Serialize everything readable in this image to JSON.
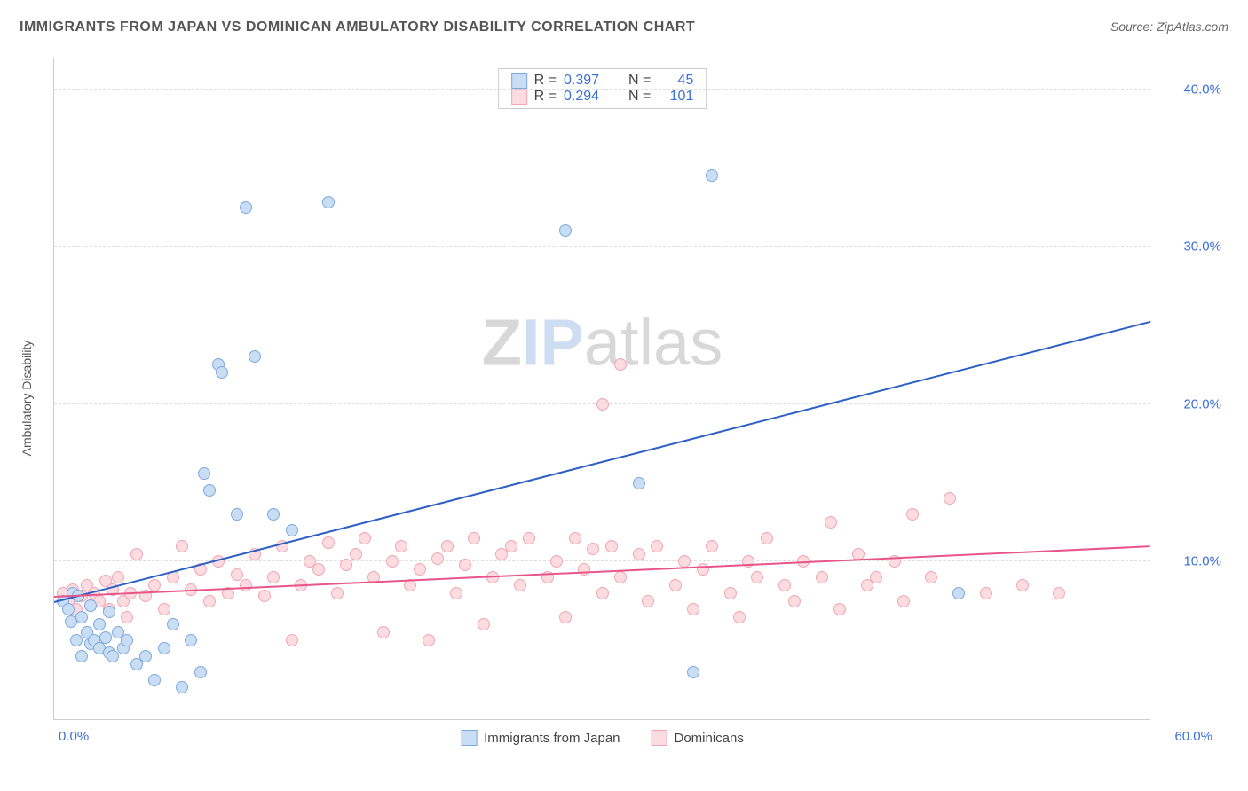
{
  "title": "IMMIGRANTS FROM JAPAN VS DOMINICAN AMBULATORY DISABILITY CORRELATION CHART",
  "source": "Source: ZipAtlas.com",
  "y_axis_label": "Ambulatory Disability",
  "watermark_parts": {
    "z": "Z",
    "ip": "IP",
    "atlas": "atlas"
  },
  "chart": {
    "type": "scatter",
    "xlim": [
      0,
      60
    ],
    "ylim": [
      0,
      42
    ],
    "x_ticks": [
      {
        "value": 0,
        "label": "0.0%"
      },
      {
        "value": 60,
        "label": "60.0%"
      }
    ],
    "y_ticks": [
      {
        "value": 10,
        "label": "10.0%"
      },
      {
        "value": 20,
        "label": "20.0%"
      },
      {
        "value": 30,
        "label": "30.0%"
      },
      {
        "value": 40,
        "label": "40.0%"
      }
    ],
    "background_color": "#ffffff",
    "grid_color": "#dddddd",
    "axis_color": "#cccccc",
    "tick_label_color": "#3a6fd8",
    "marker_radius": 7,
    "series": [
      {
        "name": "Immigrants from Japan",
        "key": "japan",
        "fill": "#c9ddf5",
        "stroke": "#7ea9dd",
        "line_color": "#2d5fc4",
        "R": "0.397",
        "N": "45",
        "regression": {
          "x1": 0,
          "y1": 7.5,
          "x2": 60,
          "y2": 25.3
        },
        "points": [
          [
            0.5,
            7.5
          ],
          [
            0.8,
            7.0
          ],
          [
            0.9,
            6.2
          ],
          [
            1.0,
            8.0
          ],
          [
            1.2,
            5.0
          ],
          [
            1.3,
            7.8
          ],
          [
            1.5,
            6.5
          ],
          [
            1.5,
            4.0
          ],
          [
            1.8,
            5.5
          ],
          [
            2.0,
            7.2
          ],
          [
            2.0,
            4.8
          ],
          [
            2.2,
            5.0
          ],
          [
            2.5,
            4.5
          ],
          [
            2.5,
            6.0
          ],
          [
            2.8,
            5.2
          ],
          [
            3.0,
            4.2
          ],
          [
            3.0,
            6.8
          ],
          [
            3.2,
            4.0
          ],
          [
            3.5,
            5.5
          ],
          [
            3.8,
            4.5
          ],
          [
            4.0,
            5.0
          ],
          [
            4.5,
            3.5
          ],
          [
            5.0,
            4.0
          ],
          [
            5.5,
            2.5
          ],
          [
            6.0,
            4.5
          ],
          [
            6.5,
            6.0
          ],
          [
            7.0,
            2.0
          ],
          [
            7.5,
            5.0
          ],
          [
            8.0,
            3.0
          ],
          [
            8.2,
            15.6
          ],
          [
            8.5,
            14.5
          ],
          [
            9.0,
            22.5
          ],
          [
            9.2,
            22.0
          ],
          [
            10.0,
            13.0
          ],
          [
            10.5,
            32.5
          ],
          [
            11.0,
            23.0
          ],
          [
            12.0,
            13.0
          ],
          [
            13.0,
            12.0
          ],
          [
            15.0,
            32.8
          ],
          [
            28.0,
            31.0
          ],
          [
            32.0,
            15.0
          ],
          [
            35.0,
            3.0
          ],
          [
            36.0,
            34.5
          ],
          [
            49.5,
            8.0
          ]
        ]
      },
      {
        "name": "Dominicans",
        "key": "dominicans",
        "fill": "#fcdbe1",
        "stroke": "#f0a6b4",
        "line_color": "#e8558a",
        "R": "0.294",
        "N": "101",
        "regression": {
          "x1": 0,
          "y1": 7.8,
          "x2": 60,
          "y2": 11.0
        },
        "points": [
          [
            0.5,
            8.0
          ],
          [
            0.8,
            7.5
          ],
          [
            1.0,
            8.2
          ],
          [
            1.2,
            7.0
          ],
          [
            1.5,
            7.8
          ],
          [
            1.8,
            8.5
          ],
          [
            2.0,
            7.2
          ],
          [
            2.2,
            8.0
          ],
          [
            2.5,
            7.5
          ],
          [
            2.8,
            8.8
          ],
          [
            3.0,
            7.0
          ],
          [
            3.2,
            8.2
          ],
          [
            3.5,
            9.0
          ],
          [
            3.8,
            7.5
          ],
          [
            4.0,
            6.5
          ],
          [
            4.2,
            8.0
          ],
          [
            4.5,
            10.5
          ],
          [
            5.0,
            7.8
          ],
          [
            5.5,
            8.5
          ],
          [
            6.0,
            7.0
          ],
          [
            6.5,
            9.0
          ],
          [
            7.0,
            11.0
          ],
          [
            7.5,
            8.2
          ],
          [
            8.0,
            9.5
          ],
          [
            8.5,
            7.5
          ],
          [
            9.0,
            10.0
          ],
          [
            9.5,
            8.0
          ],
          [
            10.0,
            9.2
          ],
          [
            10.5,
            8.5
          ],
          [
            11.0,
            10.5
          ],
          [
            11.5,
            7.8
          ],
          [
            12.0,
            9.0
          ],
          [
            12.5,
            11.0
          ],
          [
            13.0,
            5.0
          ],
          [
            13.5,
            8.5
          ],
          [
            14.0,
            10.0
          ],
          [
            14.5,
            9.5
          ],
          [
            15.0,
            11.2
          ],
          [
            15.5,
            8.0
          ],
          [
            16.0,
            9.8
          ],
          [
            16.5,
            10.5
          ],
          [
            17.0,
            11.5
          ],
          [
            17.5,
            9.0
          ],
          [
            18.0,
            5.5
          ],
          [
            18.5,
            10.0
          ],
          [
            19.0,
            11.0
          ],
          [
            19.5,
            8.5
          ],
          [
            20.0,
            9.5
          ],
          [
            20.5,
            5.0
          ],
          [
            21.0,
            10.2
          ],
          [
            21.5,
            11.0
          ],
          [
            22.0,
            8.0
          ],
          [
            22.5,
            9.8
          ],
          [
            23.0,
            11.5
          ],
          [
            23.5,
            6.0
          ],
          [
            24.0,
            9.0
          ],
          [
            24.5,
            10.5
          ],
          [
            25.0,
            11.0
          ],
          [
            25.5,
            8.5
          ],
          [
            26.0,
            11.5
          ],
          [
            27.0,
            9.0
          ],
          [
            27.5,
            10.0
          ],
          [
            28.0,
            6.5
          ],
          [
            28.5,
            11.5
          ],
          [
            29.0,
            9.5
          ],
          [
            29.5,
            10.8
          ],
          [
            30.0,
            8.0
          ],
          [
            30.0,
            20.0
          ],
          [
            30.5,
            11.0
          ],
          [
            31.0,
            9.0
          ],
          [
            31.0,
            22.5
          ],
          [
            32.0,
            10.5
          ],
          [
            32.5,
            7.5
          ],
          [
            33.0,
            11.0
          ],
          [
            34.0,
            8.5
          ],
          [
            34.5,
            10.0
          ],
          [
            35.0,
            7.0
          ],
          [
            35.5,
            9.5
          ],
          [
            36.0,
            11.0
          ],
          [
            37.0,
            8.0
          ],
          [
            37.5,
            6.5
          ],
          [
            38.0,
            10.0
          ],
          [
            38.5,
            9.0
          ],
          [
            39.0,
            11.5
          ],
          [
            40.0,
            8.5
          ],
          [
            40.5,
            7.5
          ],
          [
            41.0,
            10.0
          ],
          [
            42.0,
            9.0
          ],
          [
            42.5,
            12.5
          ],
          [
            43.0,
            7.0
          ],
          [
            44.0,
            10.5
          ],
          [
            44.5,
            8.5
          ],
          [
            45.0,
            9.0
          ],
          [
            46.0,
            10.0
          ],
          [
            46.5,
            7.5
          ],
          [
            47.0,
            13.0
          ],
          [
            48.0,
            9.0
          ],
          [
            49.0,
            14.0
          ],
          [
            51.0,
            8.0
          ],
          [
            53.0,
            8.5
          ],
          [
            55.0,
            8.0
          ]
        ]
      }
    ]
  },
  "bottom_legend": [
    {
      "label": "Immigrants from Japan",
      "fill": "#c9ddf5",
      "stroke": "#7ea9dd"
    },
    {
      "label": "Dominicans",
      "fill": "#fcdbe1",
      "stroke": "#f0a6b4"
    }
  ]
}
